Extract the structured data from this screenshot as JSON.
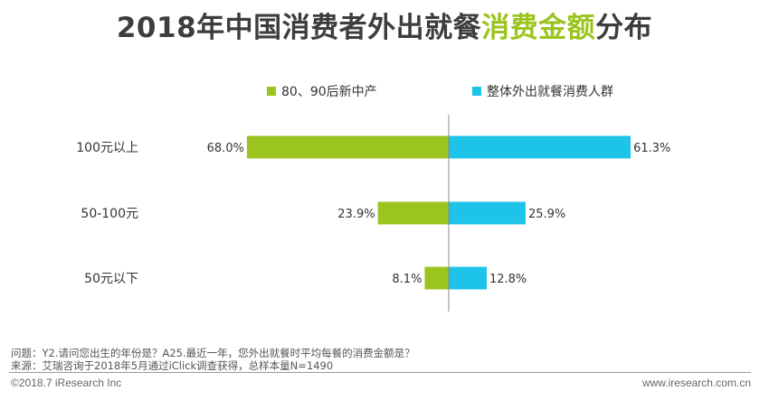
{
  "title": {
    "part1": "2018年中国消费者外出就餐",
    "part2": "消费金额",
    "part3": "分布"
  },
  "colors": {
    "series1": "#9bc51e",
    "series2": "#1ec3e9",
    "title_accent": "#9bc51e",
    "axis": "#888888"
  },
  "legend": {
    "series1": "80、90后新中产",
    "series2": "整体外出就餐消费人群"
  },
  "chart_data": {
    "type": "bar",
    "orientation": "horizontal-diverging",
    "title": "2018年中国消费者外出就餐消费金额分布",
    "categories": [
      "100元以上",
      "50-100元",
      "50元以下"
    ],
    "series": [
      {
        "name": "80、90后新中产",
        "values": [
          68.0,
          23.9,
          8.1
        ],
        "labels": [
          "68.0%",
          "23.9%",
          "8.1%"
        ],
        "side": "left"
      },
      {
        "name": "整体外出就餐消费人群",
        "values": [
          61.3,
          25.9,
          12.8
        ],
        "labels": [
          "61.3%",
          "25.9%",
          "12.8%"
        ],
        "side": "right"
      }
    ],
    "unit": "%",
    "xlim": [
      0,
      70
    ],
    "grid": false,
    "legend_position": "top"
  },
  "footnotes": {
    "question": "问题：Y2.请问您出生的年份是？A25.最近一年，您外出就餐时平均每餐的消费金额是？",
    "source": "来源：艾瑞咨询于2018年5月通过iClick调查获得，总样本量N=1490"
  },
  "footer": {
    "copyright": "©2018.7 iResearch  Inc",
    "website": "www.iresearch.com.cn"
  }
}
